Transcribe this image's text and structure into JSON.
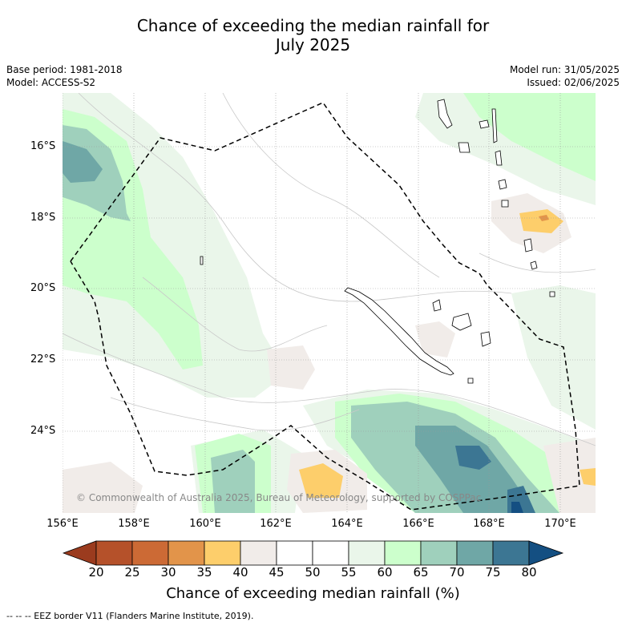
{
  "title_line1": "Chance of exceeding the median rainfall for",
  "title_line2": "July 2025",
  "base_period": "Base period: 1981-2018",
  "model": "Model: ACCESS-S2",
  "model_run": "Model run: 31/05/2025",
  "issued": "Issued: 02/06/2025",
  "lat_labels": [
    "16°S",
    "18°S",
    "20°S",
    "22°S",
    "24°S"
  ],
  "lon_labels": [
    "156°E",
    "158°E",
    "160°E",
    "162°E",
    "164°E",
    "166°E",
    "168°E",
    "170°E"
  ],
  "copyright": "© Commonwealth of Australia 2025, Bureau of Meteorology, supported by COSPPac",
  "colorbar": {
    "ticks": [
      "20",
      "25",
      "30",
      "35",
      "40",
      "45",
      "50",
      "55",
      "60",
      "65",
      "70",
      "75",
      "80"
    ],
    "colors": [
      "#9b3b1e",
      "#b5512a",
      "#cc6a35",
      "#e2944a",
      "#fdce6b",
      "#f1ece9",
      "#ffffff",
      "#ffffff",
      "#eaf6ea",
      "#ccffcc",
      "#9fd0bc",
      "#6fa7a6",
      "#3c7693",
      "#144f82"
    ],
    "label": "Chance of exceeding median rainfall (%)"
  },
  "eez_legend": "-- -- -- EEZ border V11 (Flanders Marine Institute, 2019)."
}
